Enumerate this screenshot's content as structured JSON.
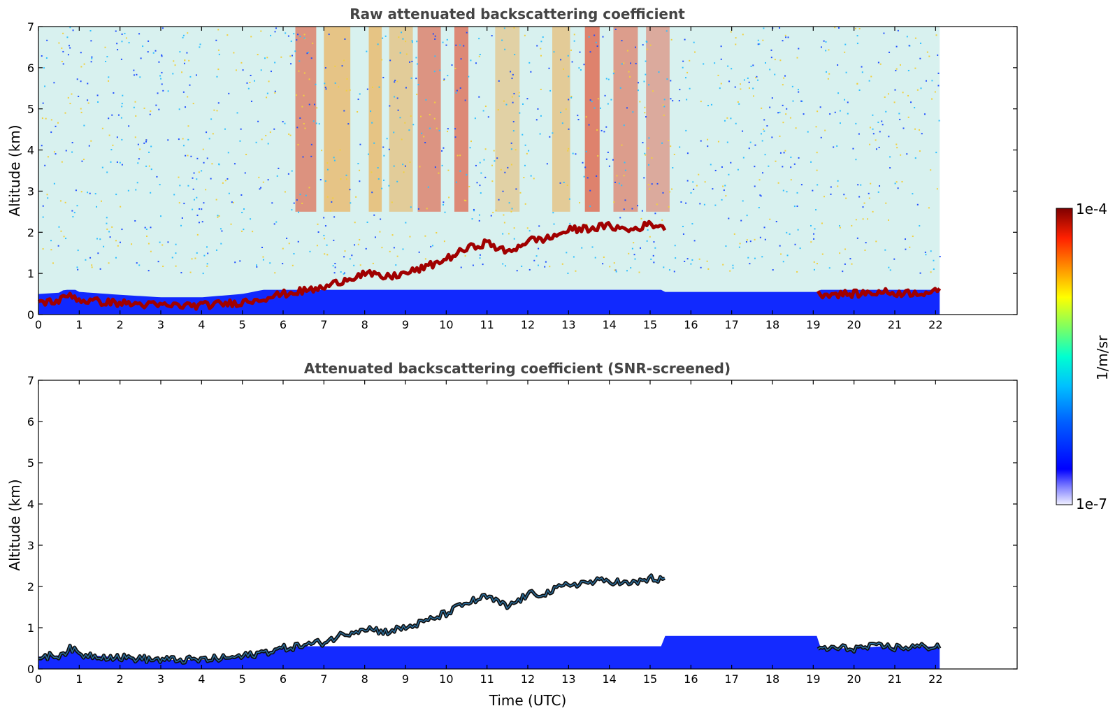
{
  "chart_data": [
    {
      "type": "heatmap",
      "id": "raw",
      "title": "Raw attenuated backscattering coefficient",
      "xlabel": "",
      "ylabel": "Altitude (km)",
      "xlim": [
        0,
        24
      ],
      "ylim": [
        0,
        7
      ],
      "x_ticks": [
        "0",
        "1",
        "2",
        "3",
        "4",
        "5",
        "6",
        "7",
        "8",
        "9",
        "10",
        "11",
        "12",
        "13",
        "14",
        "15",
        "16",
        "17",
        "18",
        "19",
        "20",
        "21",
        "22"
      ],
      "y_ticks": [
        "0",
        "1",
        "2",
        "3",
        "4",
        "5",
        "6",
        "7"
      ],
      "data_time_range": [
        0,
        22.1
      ],
      "screened": false,
      "boundary_layer_top_km": {
        "time": [
          0,
          0.5,
          0.8,
          1,
          2,
          3,
          4,
          5,
          6,
          7,
          7.5,
          8,
          8.5,
          9,
          9.5,
          10,
          10.5,
          11,
          11.5,
          12,
          12.5,
          13,
          13.5,
          14,
          14.5,
          15,
          15.3,
          19.1,
          20,
          20.7,
          21,
          22.1
        ],
        "altitude": [
          0.3,
          0.33,
          0.5,
          0.35,
          0.28,
          0.22,
          0.22,
          0.3,
          0.5,
          0.65,
          0.85,
          1.0,
          0.9,
          1.0,
          1.15,
          1.35,
          1.6,
          1.75,
          1.5,
          1.8,
          1.85,
          2.05,
          2.1,
          2.15,
          2.05,
          2.2,
          2.15,
          0.5,
          0.5,
          0.55,
          0.52,
          0.55
        ]
      }
    },
    {
      "type": "heatmap",
      "id": "screened",
      "title": "Attenuated backscattering coefficient (SNR-screened)",
      "xlabel": "Time (UTC)",
      "ylabel": "Altitude (km)",
      "xlim": [
        0,
        24
      ],
      "ylim": [
        0,
        7
      ],
      "x_ticks": [
        "0",
        "1",
        "2",
        "3",
        "4",
        "5",
        "6",
        "7",
        "8",
        "9",
        "10",
        "11",
        "12",
        "13",
        "14",
        "15",
        "16",
        "17",
        "18",
        "19",
        "20",
        "21",
        "22"
      ],
      "y_ticks": [
        "0",
        "1",
        "2",
        "3",
        "4",
        "5",
        "6",
        "7"
      ],
      "data_time_range": [
        0,
        22.1
      ],
      "screened": true,
      "boundary_layer_top_km": {
        "time": [
          0,
          0.5,
          0.8,
          1,
          2,
          3,
          4,
          5,
          6,
          7,
          7.5,
          8,
          8.5,
          9,
          9.5,
          10,
          10.5,
          11,
          11.5,
          12,
          12.5,
          13,
          13.5,
          14,
          14.5,
          15,
          15.3,
          19.1,
          20,
          20.7,
          21,
          22.1
        ],
        "altitude": [
          0.3,
          0.33,
          0.5,
          0.35,
          0.28,
          0.22,
          0.22,
          0.3,
          0.5,
          0.65,
          0.85,
          1.0,
          0.9,
          1.0,
          1.15,
          1.35,
          1.6,
          1.75,
          1.5,
          1.8,
          1.85,
          2.05,
          2.1,
          2.15,
          2.05,
          2.2,
          2.15,
          0.5,
          0.5,
          0.55,
          0.52,
          0.55
        ]
      }
    }
  ],
  "colorbar": {
    "label": "1/m/sr",
    "max_label": "1e-4",
    "min_label": "1e-7",
    "scale": "log",
    "colormap": [
      "#000080",
      "#0000ff",
      "#0080ff",
      "#00ffff",
      "#80ff80",
      "#ffff00",
      "#ff8000",
      "#ff0000",
      "#800000"
    ]
  }
}
